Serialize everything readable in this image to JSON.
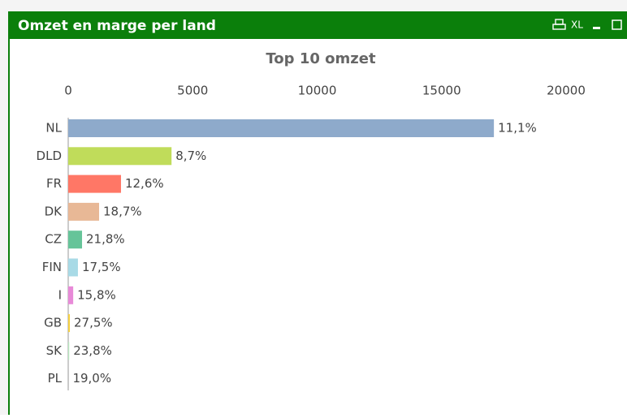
{
  "window_title": "Omzet en marge per land",
  "toolbar_label": "XL",
  "chart_data": {
    "type": "hbar",
    "title": "Top 10 omzet",
    "categories": [
      "NL",
      "DLD",
      "FR",
      "DK",
      "CZ",
      "FIN",
      "I",
      "GB",
      "SK",
      "PL"
    ],
    "series": [
      {
        "values": [
          17100,
          4150,
          2120,
          1240,
          555,
          390,
          200,
          65,
          40,
          15
        ],
        "colors": [
          "#8eaacb",
          "#c0dc5a",
          "#ff7766",
          "#e8b896",
          "#66c499",
          "#a8dae6",
          "#e88ad8",
          "#f5d040",
          "#b8e8c0",
          "#c8c8c8"
        ]
      }
    ],
    "margin_labels": [
      "11,1%",
      "8,7%",
      "12,6%",
      "18,7%",
      "21,8%",
      "17,5%",
      "15,8%",
      "27,5%",
      "23,8%",
      "19,0%"
    ],
    "xlim": [
      0,
      20000
    ],
    "xticks": [
      0,
      5000,
      10000,
      15000,
      20000
    ]
  }
}
